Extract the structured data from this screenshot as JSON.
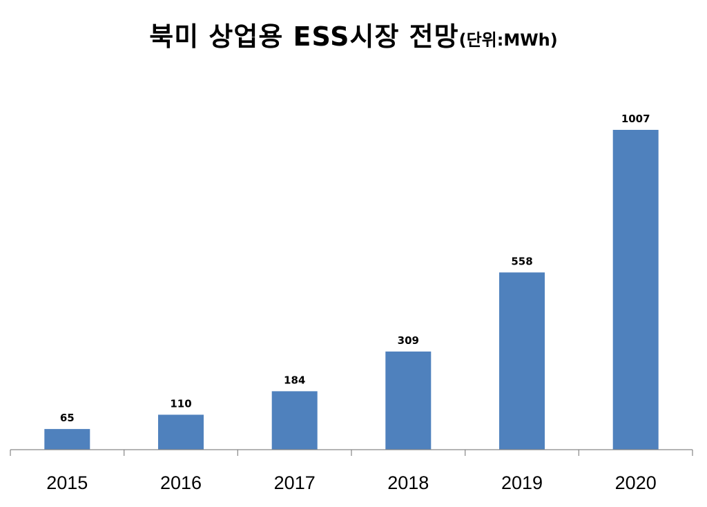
{
  "chart_data": {
    "type": "bar",
    "title": "북미 상업용 ESS시장 전망",
    "title_unit": "(단위:MWh)",
    "categories": [
      "2015",
      "2016",
      "2017",
      "2018",
      "2019",
      "2020"
    ],
    "values": [
      65,
      110,
      184,
      309,
      558,
      1007
    ],
    "data_labels": [
      "65",
      "110",
      "184",
      "309",
      "558",
      "1007"
    ],
    "xlabel": "",
    "ylabel": "",
    "ylim": [
      0,
      1100
    ],
    "grid": false,
    "legend": "none",
    "bar_color": "#4f81bd"
  }
}
